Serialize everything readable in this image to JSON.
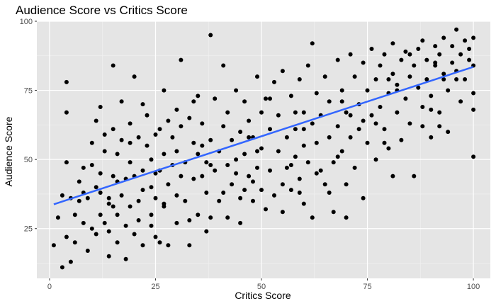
{
  "chart_data": {
    "type": "scatter",
    "title": "Audience Score vs Critics Score",
    "xlabel": "Critics Score",
    "ylabel": "Audience Score",
    "xlim": [
      -3,
      104
    ],
    "ylim": [
      7,
      100
    ],
    "x_ticks": [
      0,
      25,
      50,
      75,
      100
    ],
    "y_ticks": [
      25,
      50,
      75,
      100
    ],
    "grid": true,
    "background": "#e5e5e5",
    "point_color": "#000000",
    "trend_color": "#3366ff",
    "trendline": {
      "x": [
        1,
        100
      ],
      "y": [
        33.8,
        83.5
      ]
    },
    "series": [
      {
        "points": [
          [
            1,
            19
          ],
          [
            2,
            29
          ],
          [
            3,
            11
          ],
          [
            3,
            37
          ],
          [
            4,
            22
          ],
          [
            4,
            78
          ],
          [
            4,
            67
          ],
          [
            4,
            49
          ],
          [
            5,
            13
          ],
          [
            5,
            36
          ],
          [
            6,
            20
          ],
          [
            6,
            30
          ],
          [
            7,
            35
          ],
          [
            7,
            42
          ],
          [
            8,
            38
          ],
          [
            8,
            47
          ],
          [
            9,
            17
          ],
          [
            9,
            36
          ],
          [
            10,
            25
          ],
          [
            10,
            48
          ],
          [
            10,
            56
          ],
          [
            11,
            40
          ],
          [
            11,
            23
          ],
          [
            11,
            64
          ],
          [
            12,
            30
          ],
          [
            12,
            69
          ],
          [
            12,
            38
          ],
          [
            13,
            27
          ],
          [
            13,
            53
          ],
          [
            13,
            59
          ],
          [
            14,
            36
          ],
          [
            14,
            15
          ],
          [
            14,
            24
          ],
          [
            15,
            33
          ],
          [
            15,
            44
          ],
          [
            15,
            84
          ],
          [
            15,
            61
          ],
          [
            16,
            30
          ],
          [
            16,
            52
          ],
          [
            16,
            20
          ],
          [
            17,
            37
          ],
          [
            17,
            57
          ],
          [
            17,
            71
          ],
          [
            18,
            14
          ],
          [
            18,
            43
          ],
          [
            18,
            26
          ],
          [
            19,
            33
          ],
          [
            19,
            49
          ],
          [
            19,
            63
          ],
          [
            20,
            80
          ],
          [
            20,
            23
          ],
          [
            20,
            44
          ],
          [
            21,
            35
          ],
          [
            21,
            58
          ],
          [
            21,
            28
          ],
          [
            22,
            46
          ],
          [
            22,
            70
          ],
          [
            22,
            19
          ],
          [
            23,
            55
          ],
          [
            23,
            66
          ],
          [
            24,
            30
          ],
          [
            24,
            40
          ],
          [
            24,
            50
          ],
          [
            25,
            59
          ],
          [
            25,
            36
          ],
          [
            25,
            22
          ],
          [
            26,
            61
          ],
          [
            26,
            46
          ],
          [
            27,
            52
          ],
          [
            27,
            75
          ],
          [
            27,
            33
          ],
          [
            28,
            41
          ],
          [
            28,
            64
          ],
          [
            28,
            19
          ],
          [
            29,
            48
          ],
          [
            29,
            58
          ],
          [
            30,
            37
          ],
          [
            30,
            53
          ],
          [
            30,
            27
          ],
          [
            31,
            44
          ],
          [
            31,
            62
          ],
          [
            31,
            86
          ],
          [
            32,
            35
          ],
          [
            32,
            49
          ],
          [
            33,
            65
          ],
          [
            33,
            19
          ],
          [
            34,
            71
          ],
          [
            34,
            43
          ],
          [
            34,
            56
          ],
          [
            35,
            52
          ],
          [
            35,
            30
          ],
          [
            36,
            63
          ],
          [
            36,
            44
          ],
          [
            37,
            49
          ],
          [
            37,
            38
          ],
          [
            38,
            95
          ],
          [
            38,
            57
          ],
          [
            38,
            29
          ],
          [
            39,
            72
          ],
          [
            39,
            46
          ],
          [
            40,
            53
          ],
          [
            40,
            35
          ],
          [
            41,
            62
          ],
          [
            41,
            84
          ],
          [
            42,
            48
          ],
          [
            42,
            67
          ],
          [
            42,
            29
          ],
          [
            43,
            57
          ],
          [
            43,
            41
          ],
          [
            44,
            75
          ],
          [
            44,
            50
          ],
          [
            45,
            36
          ],
          [
            45,
            60
          ],
          [
            45,
            27
          ],
          [
            46,
            52
          ],
          [
            46,
            71
          ],
          [
            47,
            44
          ],
          [
            47,
            64
          ],
          [
            48,
            58
          ],
          [
            48,
            35
          ],
          [
            49,
            80
          ],
          [
            49,
            47
          ],
          [
            50,
            67
          ],
          [
            50,
            39
          ],
          [
            50,
            54
          ],
          [
            51,
            32
          ],
          [
            51,
            72
          ],
          [
            52,
            61
          ],
          [
            52,
            46
          ],
          [
            53,
            78
          ],
          [
            53,
            37
          ],
          [
            54,
            66
          ],
          [
            54,
            53
          ],
          [
            55,
            41
          ],
          [
            55,
            82
          ],
          [
            56,
            58
          ],
          [
            56,
            47
          ],
          [
            57,
            73
          ],
          [
            57,
            39
          ],
          [
            58,
            61
          ],
          [
            58,
            51
          ],
          [
            59,
            79
          ],
          [
            59,
            43
          ],
          [
            60,
            67
          ],
          [
            60,
            55
          ],
          [
            60,
            34
          ],
          [
            61,
            84
          ],
          [
            61,
            49
          ],
          [
            62,
            63
          ],
          [
            62,
            29
          ],
          [
            62,
            92
          ],
          [
            63,
            74
          ],
          [
            63,
            56
          ],
          [
            64,
            46
          ],
          [
            64,
            66
          ],
          [
            65,
            80
          ],
          [
            65,
            41
          ],
          [
            66,
            58
          ],
          [
            66,
            71
          ],
          [
            67,
            49
          ],
          [
            67,
            31
          ],
          [
            68,
            86
          ],
          [
            68,
            62
          ],
          [
            69,
            75
          ],
          [
            69,
            53
          ],
          [
            70,
            67
          ],
          [
            70,
            41
          ],
          [
            71,
            88
          ],
          [
            71,
            58
          ],
          [
            72,
            80
          ],
          [
            72,
            47
          ],
          [
            73,
            70
          ],
          [
            73,
            61
          ],
          [
            74,
            36
          ],
          [
            74,
            85
          ],
          [
            75,
            56
          ],
          [
            75,
            75
          ],
          [
            76,
            66
          ],
          [
            76,
            90
          ],
          [
            77,
            79
          ],
          [
            77,
            50
          ],
          [
            78,
            84
          ],
          [
            78,
            69
          ],
          [
            79,
            61
          ],
          [
            79,
            88
          ],
          [
            80,
            74
          ],
          [
            80,
            54
          ],
          [
            81,
            92
          ],
          [
            81,
            81
          ],
          [
            82,
            67
          ],
          [
            82,
            77
          ],
          [
            83,
            57
          ],
          [
            83,
            86
          ],
          [
            84,
            89
          ],
          [
            84,
            72
          ],
          [
            85,
            80
          ],
          [
            85,
            63
          ],
          [
            86,
            44
          ],
          [
            86,
            84
          ],
          [
            87,
            90
          ],
          [
            87,
            76
          ],
          [
            88,
            93
          ],
          [
            88,
            69
          ],
          [
            89,
            86
          ],
          [
            89,
            79
          ],
          [
            90,
            73
          ],
          [
            90,
            58
          ],
          [
            91,
            91
          ],
          [
            91,
            84
          ],
          [
            92,
            67
          ],
          [
            92,
            88
          ],
          [
            93,
            94
          ],
          [
            93,
            79
          ],
          [
            94,
            75
          ],
          [
            94,
            60
          ],
          [
            95,
            85
          ],
          [
            95,
            91
          ],
          [
            96,
            97
          ],
          [
            96,
            82
          ],
          [
            97,
            71
          ],
          [
            97,
            88
          ],
          [
            98,
            93
          ],
          [
            98,
            79
          ],
          [
            99,
            86
          ],
          [
            99,
            90
          ],
          [
            100,
            68
          ],
          [
            100,
            51
          ],
          [
            100,
            94
          ],
          [
            100,
            84
          ],
          [
            100,
            74
          ],
          [
            12,
            45
          ],
          [
            22,
            39
          ],
          [
            33,
            28
          ],
          [
            44,
            45
          ],
          [
            55,
            31
          ],
          [
            66,
            38
          ],
          [
            77,
            63
          ],
          [
            88,
            62
          ],
          [
            26,
            20
          ],
          [
            37,
            24
          ],
          [
            48,
            42
          ],
          [
            59,
            38
          ],
          [
            70,
            29
          ],
          [
            81,
            44
          ],
          [
            92,
            62
          ],
          [
            8,
            27
          ],
          [
            19,
            56
          ],
          [
            30,
            68
          ],
          [
            41,
            38
          ],
          [
            52,
            72
          ],
          [
            63,
            45
          ],
          [
            74,
            64
          ],
          [
            85,
            88
          ],
          [
            96,
            79
          ],
          [
            14,
            34
          ],
          [
            25,
            45
          ],
          [
            36,
            55
          ],
          [
            47,
            58
          ],
          [
            58,
            67
          ],
          [
            69,
            71
          ],
          [
            80,
            79
          ],
          [
            91,
            85
          ],
          [
            24,
            26
          ],
          [
            35,
            73
          ],
          [
            46,
            39
          ],
          [
            57,
            48
          ],
          [
            68,
            51
          ],
          [
            79,
            56
          ],
          [
            90,
            68
          ],
          [
            16,
            42
          ],
          [
            27,
            34
          ],
          [
            38,
            48
          ],
          [
            49,
            53
          ],
          [
            60,
            61
          ],
          [
            71,
            66
          ],
          [
            82,
            75
          ],
          [
            93,
            81
          ]
        ]
      }
    ]
  }
}
